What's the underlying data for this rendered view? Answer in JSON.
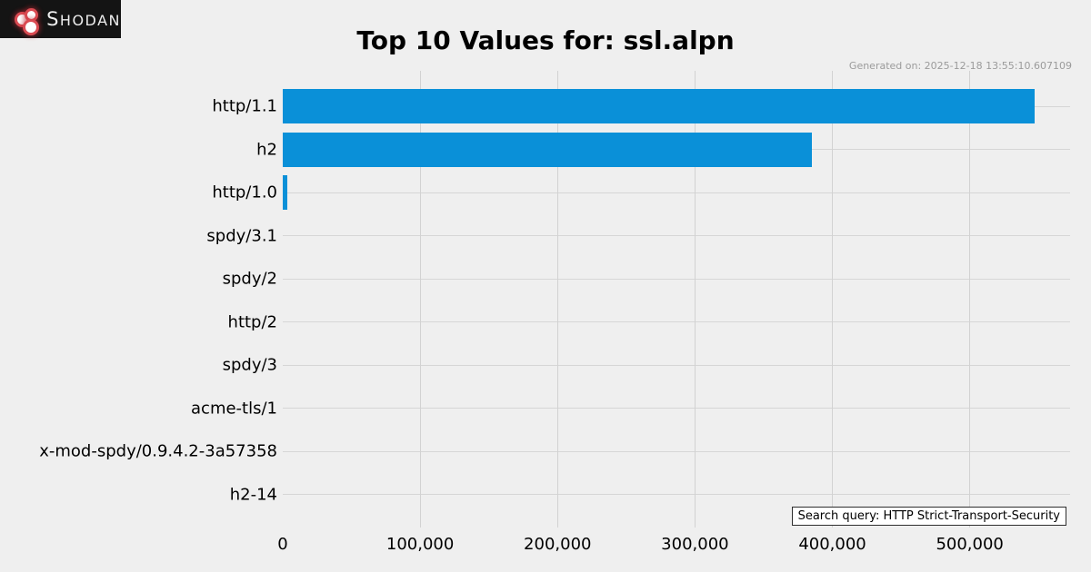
{
  "logo": {
    "icon": "shodan-cluster-icon",
    "text_cap": "S",
    "text_rest": "HODAN"
  },
  "header": {
    "title": "Top 10 Values for: ssl.alpn",
    "generated_on": "Generated on: 2025-12-18 13:55:10.607109"
  },
  "search_query": {
    "label": "Search query: HTTP Strict-Transport-Security"
  },
  "colors": {
    "background": "#efefef",
    "bar": "#0a90d8",
    "gridline": "#d4d4d4",
    "logo_background": "#141414",
    "logo_red": "#da4b52",
    "generated_text": "#9b9b9b"
  },
  "chart_data": {
    "type": "bar",
    "orientation": "horizontal",
    "title": "Top 10 Values for: ssl.alpn",
    "categories": [
      "http/1.1",
      "h2",
      "http/1.0",
      "spdy/3.1",
      "spdy/2",
      "http/2",
      "spdy/3",
      "acme-tls/1",
      "x-mod-spdy/0.9.4.2-3a57358",
      "h2-14"
    ],
    "values": [
      547000,
      385000,
      3300,
      0,
      0,
      0,
      0,
      0,
      0,
      0
    ],
    "x_ticks": [
      0,
      100000,
      200000,
      300000,
      400000,
      500000
    ],
    "x_tick_labels": [
      "0",
      "100,000",
      "200,000",
      "300,000",
      "400,000",
      "500,000"
    ],
    "xlim": [
      0,
      573000
    ],
    "xlabel": "",
    "ylabel": "",
    "grid": true,
    "legend": "none"
  }
}
